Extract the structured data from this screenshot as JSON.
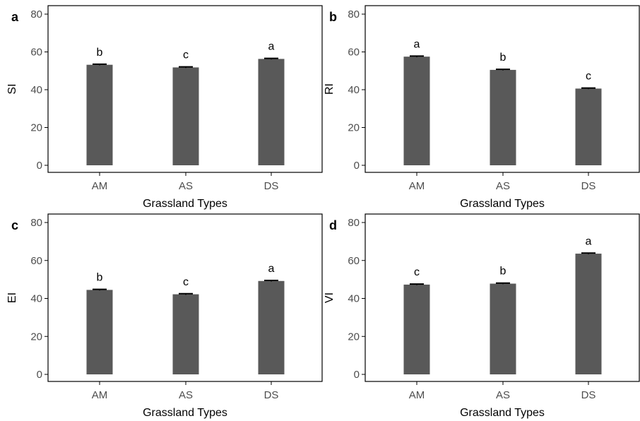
{
  "colors": {
    "bar": "#595959",
    "errorbar": "#000000",
    "frame": "#000000",
    "tick_text": "#4d4d4d"
  },
  "chart_data": [
    {
      "panel": "a",
      "type": "bar",
      "categories": [
        "AM",
        "AS",
        "DS"
      ],
      "values": [
        53.2,
        51.8,
        56.3
      ],
      "errors": [
        0.3,
        0.3,
        0.3
      ],
      "significance": [
        "b",
        "c",
        "a"
      ],
      "xlabel": "Grassland Types",
      "ylabel": "SI",
      "ylim": [
        0,
        80
      ],
      "yticks": [
        0,
        20,
        40,
        60,
        80
      ],
      "grid": false
    },
    {
      "panel": "b",
      "type": "bar",
      "categories": [
        "AM",
        "AS",
        "DS"
      ],
      "values": [
        57.5,
        50.5,
        40.6
      ],
      "errors": [
        0.3,
        0.3,
        0.3
      ],
      "significance": [
        "a",
        "b",
        "c"
      ],
      "xlabel": "Grassland Types",
      "ylabel": "RI",
      "ylim": [
        0,
        80
      ],
      "yticks": [
        0,
        20,
        40,
        60,
        80
      ],
      "grid": false
    },
    {
      "panel": "c",
      "type": "bar",
      "categories": [
        "AM",
        "AS",
        "DS"
      ],
      "values": [
        44.5,
        42.2,
        49.2
      ],
      "errors": [
        0.3,
        0.3,
        0.3
      ],
      "significance": [
        "b",
        "c",
        "a"
      ],
      "xlabel": "Grassland Types",
      "ylabel": "EI",
      "ylim": [
        0,
        80
      ],
      "yticks": [
        0,
        20,
        40,
        60,
        80
      ],
      "grid": false
    },
    {
      "panel": "d",
      "type": "bar",
      "categories": [
        "AM",
        "AS",
        "DS"
      ],
      "values": [
        47.3,
        47.8,
        63.6
      ],
      "errors": [
        0.3,
        0.3,
        0.3
      ],
      "significance": [
        "c",
        "b",
        "a"
      ],
      "xlabel": "Grassland Types",
      "ylabel": "VI",
      "ylim": [
        0,
        80
      ],
      "yticks": [
        0,
        20,
        40,
        60,
        80
      ],
      "grid": false
    }
  ]
}
